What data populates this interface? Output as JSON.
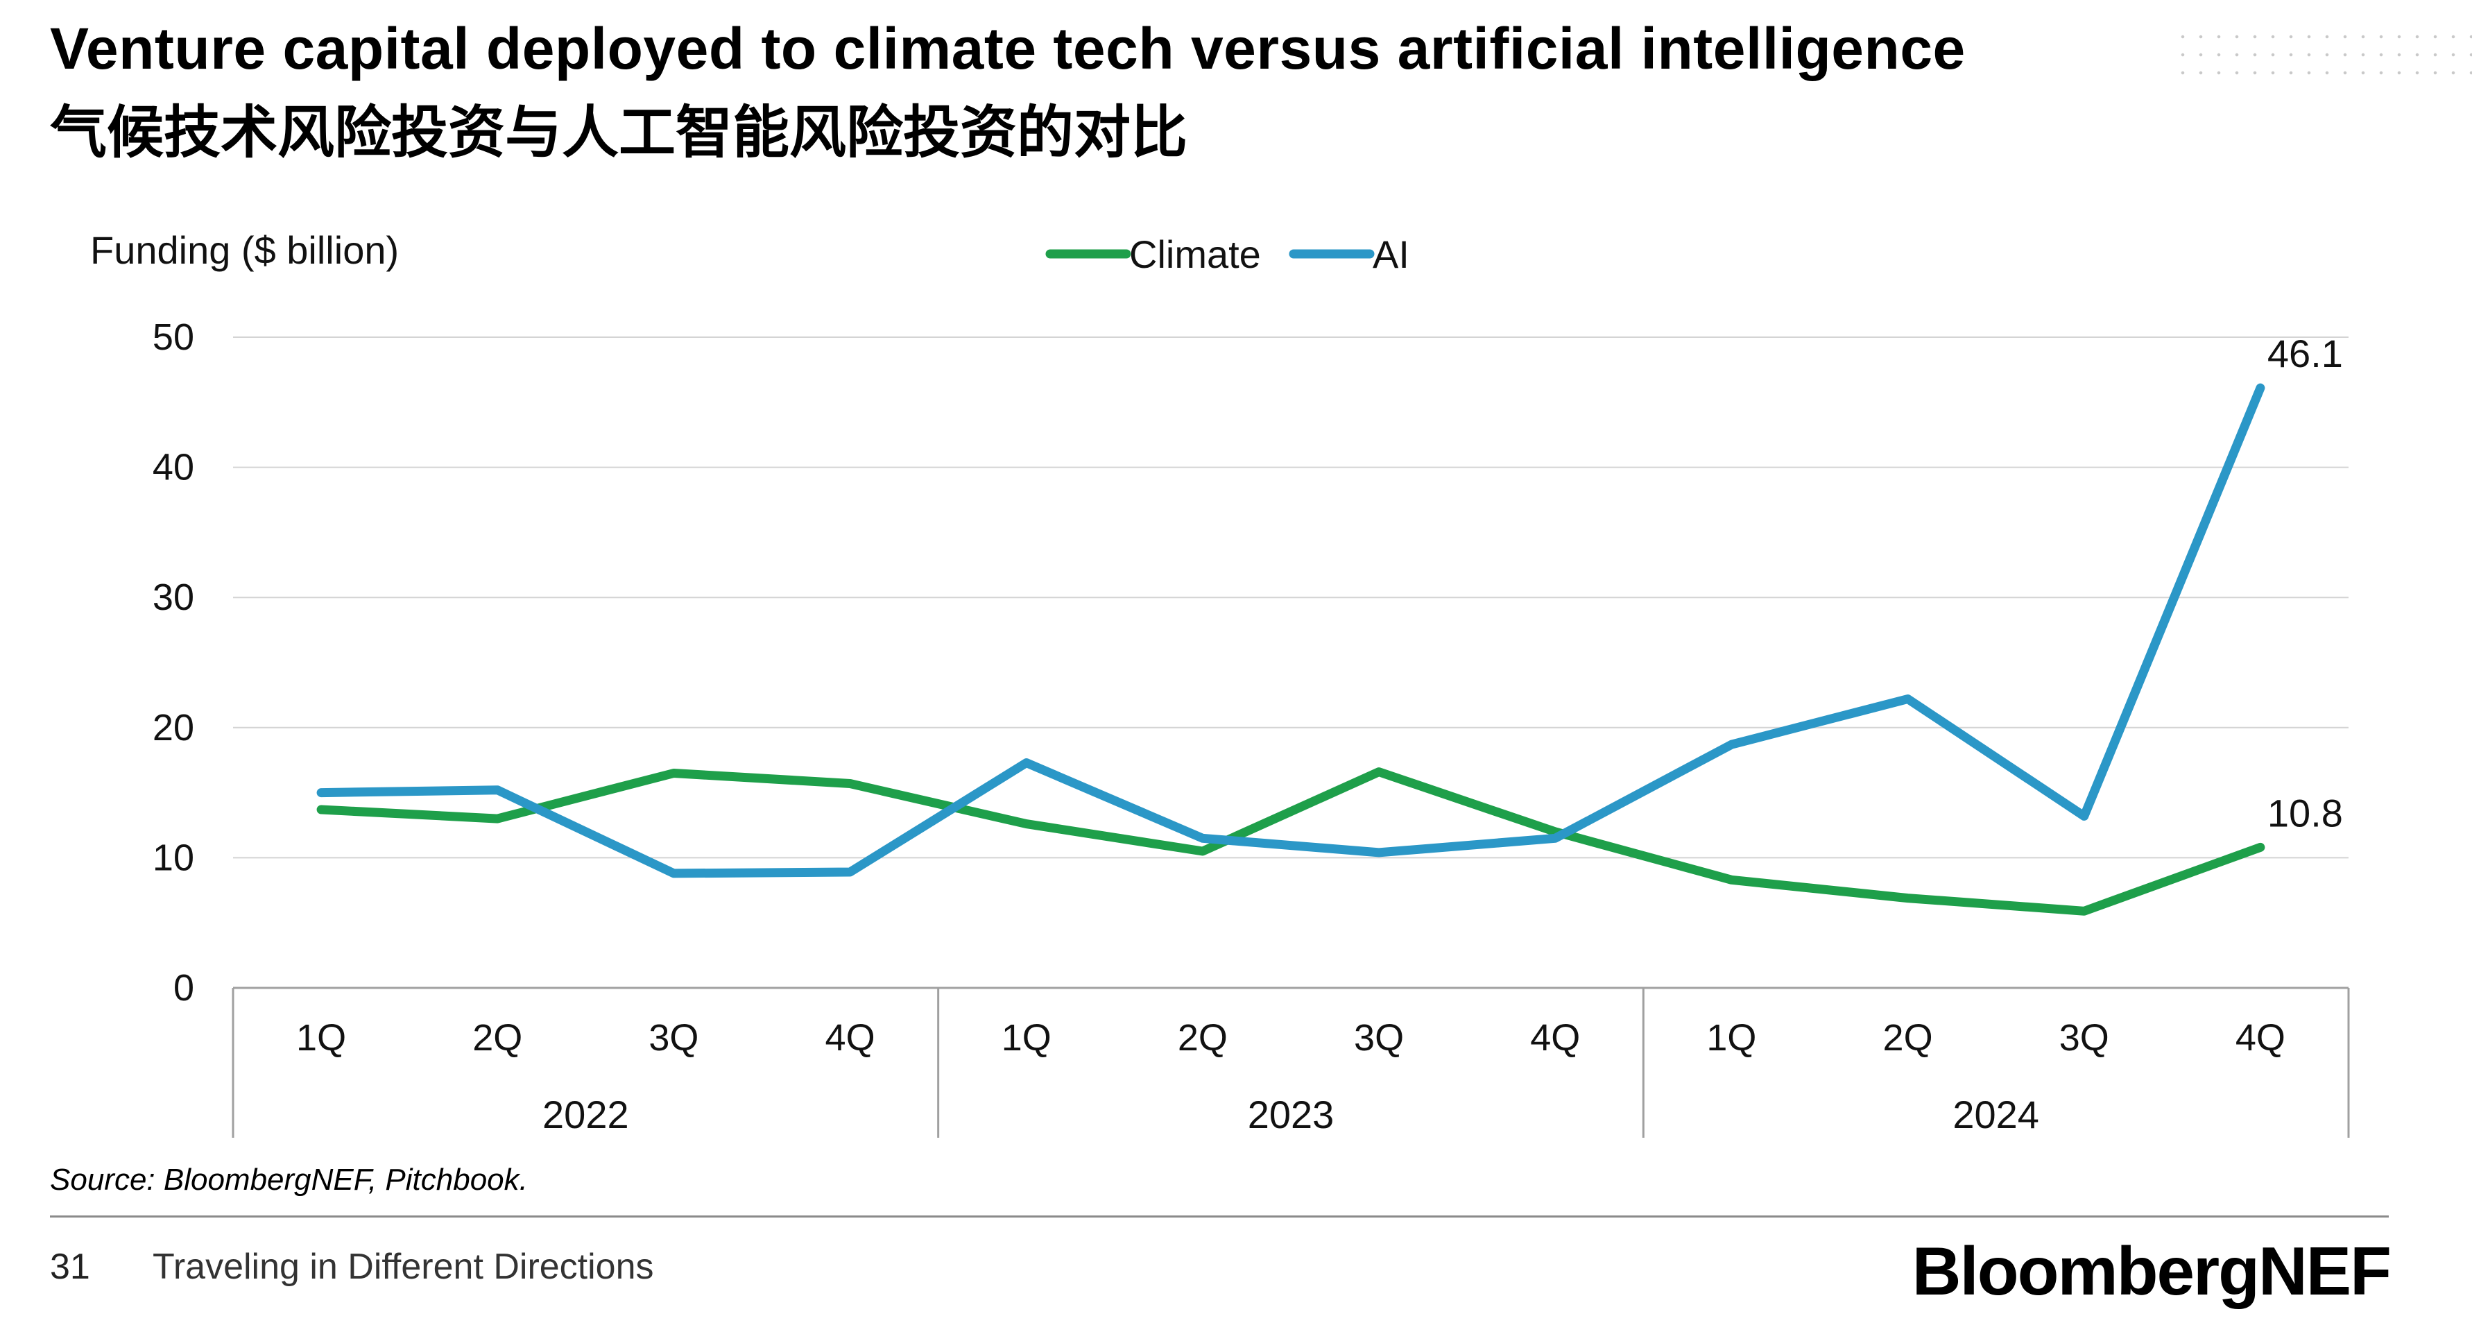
{
  "header": {
    "title_en": "Venture capital deployed to climate tech versus artificial intelligence",
    "title_zh": "气候技术风险投资与人工智能风险投资的对比"
  },
  "footer": {
    "source": "Source: BloombergNEF, Pitchbook.",
    "page_number": "31",
    "section_title": "Traveling in Different Directions",
    "brand": "BloombergNEF"
  },
  "chart_data": {
    "type": "line",
    "title": "",
    "ylabel": "Funding ($ billion)",
    "xlabel": "",
    "ylim": [
      0,
      50
    ],
    "yticks": [
      0,
      10,
      20,
      30,
      40,
      50
    ],
    "grid": true,
    "legend_position": "top-center",
    "categories": [
      "1Q",
      "2Q",
      "3Q",
      "4Q",
      "1Q",
      "2Q",
      "3Q",
      "4Q",
      "1Q",
      "2Q",
      "3Q",
      "4Q"
    ],
    "groups": [
      {
        "label": "2022",
        "count": 4
      },
      {
        "label": "2023",
        "count": 4
      },
      {
        "label": "2024",
        "count": 4
      }
    ],
    "series": [
      {
        "name": "Climate",
        "color": "#1e9f4a",
        "values": [
          13.7,
          13.0,
          16.5,
          15.7,
          12.6,
          10.5,
          16.6,
          12.0,
          8.3,
          6.9,
          5.9,
          10.8
        ]
      },
      {
        "name": "AI",
        "color": "#2b97c7",
        "values": [
          15.0,
          15.2,
          8.8,
          8.9,
          17.3,
          11.5,
          10.4,
          11.5,
          18.7,
          22.2,
          13.2,
          46.1
        ]
      }
    ],
    "annotations": [
      {
        "series": "AI",
        "index": 11,
        "text": "46.1"
      },
      {
        "series": "Climate",
        "index": 11,
        "text": "10.8"
      }
    ]
  }
}
